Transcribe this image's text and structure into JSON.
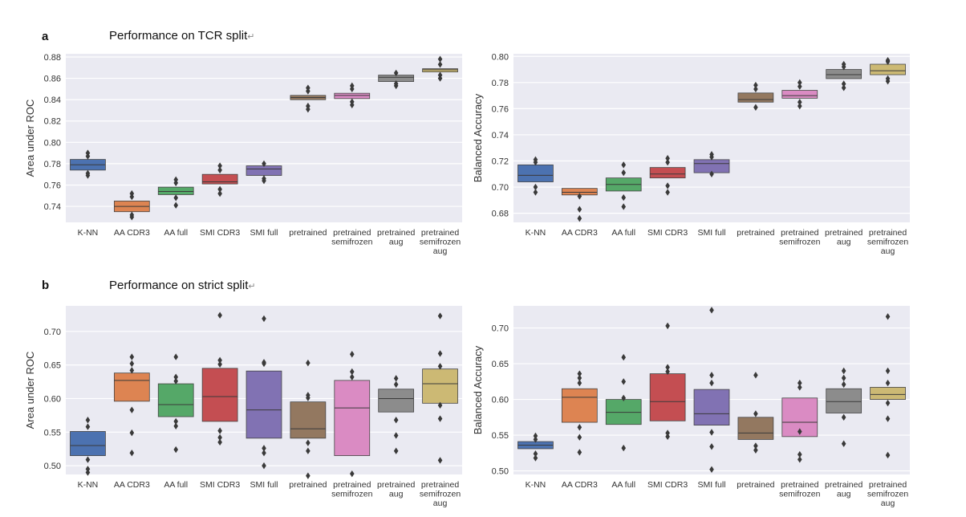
{
  "panels": [
    {
      "letter": "a",
      "title": "Performance on TCR split",
      "mark": "↵"
    },
    {
      "letter": "b",
      "title": "Performance on strict split",
      "mark": "↵"
    }
  ],
  "colors": {
    "background": "#eaeaf2",
    "grid": "#ffffff",
    "outlier": "#3a3a3a",
    "median": "#3a3a3a",
    "series": [
      "#4c72b0",
      "#dd8452",
      "#55a868",
      "#c44e52",
      "#8172b3",
      "#937860",
      "#da8bc3",
      "#8c8c8c",
      "#ccb974"
    ]
  },
  "chart_data": [
    {
      "type": "box",
      "ylabel": "Area under ROC",
      "ylim": [
        0.725,
        0.883
      ],
      "yticks": [
        "0.74",
        "0.76",
        "0.78",
        "0.80",
        "0.82",
        "0.84",
        "0.86",
        "0.88"
      ],
      "categories": [
        "K-NN",
        "AA CDR3",
        "AA full",
        "SMI CDR3",
        "SMI full",
        "pretrained",
        "pretrained\nsemifrozen",
        "pretrained\naug",
        "pretrained\nsemifrozen\naug"
      ],
      "boxes": [
        {
          "q1": 0.774,
          "median": 0.779,
          "q3": 0.784,
          "outliers": [
            0.769,
            0.771,
            0.787,
            0.79
          ]
        },
        {
          "q1": 0.735,
          "median": 0.74,
          "q3": 0.745,
          "outliers": [
            0.73,
            0.732,
            0.749,
            0.752
          ]
        },
        {
          "q1": 0.751,
          "median": 0.754,
          "q3": 0.758,
          "outliers": [
            0.741,
            0.748,
            0.762,
            0.765
          ]
        },
        {
          "q1": 0.761,
          "median": 0.763,
          "q3": 0.77,
          "outliers": [
            0.752,
            0.756,
            0.774,
            0.778
          ]
        },
        {
          "q1": 0.769,
          "median": 0.775,
          "q3": 0.778,
          "outliers": [
            0.764,
            0.766,
            0.78
          ]
        },
        {
          "q1": 0.84,
          "median": 0.842,
          "q3": 0.844,
          "outliers": [
            0.831,
            0.834,
            0.848,
            0.851
          ]
        },
        {
          "q1": 0.841,
          "median": 0.844,
          "q3": 0.846,
          "outliers": [
            0.835,
            0.838,
            0.85,
            0.853
          ]
        },
        {
          "q1": 0.857,
          "median": 0.861,
          "q3": 0.863,
          "outliers": [
            0.853,
            0.855,
            0.865
          ]
        },
        {
          "q1": 0.866,
          "median": 0.868,
          "q3": 0.869,
          "outliers": [
            0.86,
            0.863,
            0.873,
            0.878
          ]
        }
      ]
    },
    {
      "type": "box",
      "ylabel": "Balanced Accuracy",
      "ylim": [
        0.673,
        0.802
      ],
      "yticks": [
        "0.68",
        "0.70",
        "0.72",
        "0.74",
        "0.76",
        "0.78",
        "0.80"
      ],
      "categories": [
        "K-NN",
        "AA CDR3",
        "AA full",
        "SMI CDR3",
        "SMI full",
        "pretrained",
        "pretrained\nsemifrozen",
        "pretrained\naug",
        "pretrained\nsemifrozen\naug"
      ],
      "boxes": [
        {
          "q1": 0.704,
          "median": 0.709,
          "q3": 0.717,
          "outliers": [
            0.696,
            0.7,
            0.719,
            0.721
          ]
        },
        {
          "q1": 0.694,
          "median": 0.696,
          "q3": 0.699,
          "outliers": [
            0.676,
            0.683,
            0.693
          ]
        },
        {
          "q1": 0.697,
          "median": 0.702,
          "q3": 0.707,
          "outliers": [
            0.685,
            0.692,
            0.711,
            0.717
          ]
        },
        {
          "q1": 0.707,
          "median": 0.71,
          "q3": 0.715,
          "outliers": [
            0.696,
            0.701,
            0.719,
            0.722
          ]
        },
        {
          "q1": 0.711,
          "median": 0.718,
          "q3": 0.721,
          "outliers": [
            0.71,
            0.723,
            0.725
          ]
        },
        {
          "q1": 0.765,
          "median": 0.767,
          "q3": 0.772,
          "outliers": [
            0.761,
            0.775,
            0.778
          ]
        },
        {
          "q1": 0.768,
          "median": 0.77,
          "q3": 0.774,
          "outliers": [
            0.762,
            0.765,
            0.777,
            0.78
          ]
        },
        {
          "q1": 0.783,
          "median": 0.786,
          "q3": 0.79,
          "outliers": [
            0.776,
            0.779,
            0.792,
            0.794
          ]
        },
        {
          "q1": 0.786,
          "median": 0.789,
          "q3": 0.794,
          "outliers": [
            0.781,
            0.783,
            0.796,
            0.797
          ]
        }
      ]
    },
    {
      "type": "box",
      "ylabel": "Area under ROC",
      "ylim": [
        0.487,
        0.738
      ],
      "yticks": [
        "0.50",
        "0.55",
        "0.60",
        "0.65",
        "0.70"
      ],
      "categories": [
        "K-NN",
        "AA CDR3",
        "AA full",
        "SMI CDR3",
        "SMI full",
        "pretrained",
        "pretrained\nsemifrozen",
        "pretrained\naug",
        "pretrained\nsemifrozen\naug"
      ],
      "boxes": [
        {
          "q1": 0.515,
          "median": 0.53,
          "q3": 0.551,
          "outliers": [
            0.49,
            0.495,
            0.509,
            0.558,
            0.568
          ]
        },
        {
          "q1": 0.596,
          "median": 0.627,
          "q3": 0.638,
          "outliers": [
            0.519,
            0.549,
            0.583,
            0.642,
            0.652,
            0.662
          ]
        },
        {
          "q1": 0.573,
          "median": 0.591,
          "q3": 0.622,
          "outliers": [
            0.524,
            0.559,
            0.566,
            0.626,
            0.632,
            0.662
          ]
        },
        {
          "q1": 0.566,
          "median": 0.603,
          "q3": 0.645,
          "outliers": [
            0.535,
            0.542,
            0.552,
            0.651,
            0.657,
            0.724
          ]
        },
        {
          "q1": 0.541,
          "median": 0.583,
          "q3": 0.641,
          "outliers": [
            0.5,
            0.519,
            0.526,
            0.652,
            0.654,
            0.719
          ]
        },
        {
          "q1": 0.541,
          "median": 0.555,
          "q3": 0.595,
          "outliers": [
            0.485,
            0.522,
            0.534,
            0.601,
            0.605,
            0.653
          ]
        },
        {
          "q1": 0.515,
          "median": 0.586,
          "q3": 0.627,
          "outliers": [
            0.488,
            0.632,
            0.64,
            0.666
          ]
        },
        {
          "q1": 0.58,
          "median": 0.6,
          "q3": 0.614,
          "outliers": [
            0.522,
            0.545,
            0.568,
            0.621,
            0.63
          ]
        },
        {
          "q1": 0.593,
          "median": 0.622,
          "q3": 0.644,
          "outliers": [
            0.508,
            0.57,
            0.59,
            0.648,
            0.667,
            0.723
          ]
        }
      ]
    },
    {
      "type": "box",
      "ylabel": "Balanced Accuracy",
      "ylim": [
        0.495,
        0.731
      ],
      "yticks": [
        "0.50",
        "0.55",
        "0.60",
        "0.65",
        "0.70"
      ],
      "categories": [
        "K-NN",
        "AA CDR3",
        "AA full",
        "SMI CDR3",
        "SMI full",
        "pretrained",
        "pretrained\nsemifrozen",
        "pretrained\naug",
        "pretrained\nsemifrozen\naug"
      ],
      "boxes": [
        {
          "q1": 0.531,
          "median": 0.536,
          "q3": 0.541,
          "outliers": [
            0.518,
            0.524,
            0.544,
            0.549
          ]
        },
        {
          "q1": 0.568,
          "median": 0.603,
          "q3": 0.615,
          "outliers": [
            0.526,
            0.547,
            0.561,
            0.623,
            0.63,
            0.636
          ]
        },
        {
          "q1": 0.565,
          "median": 0.582,
          "q3": 0.6,
          "outliers": [
            0.532,
            0.602,
            0.625,
            0.659
          ]
        },
        {
          "q1": 0.57,
          "median": 0.597,
          "q3": 0.636,
          "outliers": [
            0.548,
            0.553,
            0.639,
            0.645,
            0.703
          ]
        },
        {
          "q1": 0.564,
          "median": 0.58,
          "q3": 0.614,
          "outliers": [
            0.502,
            0.534,
            0.554,
            0.623,
            0.634,
            0.725
          ]
        },
        {
          "q1": 0.544,
          "median": 0.553,
          "q3": 0.575,
          "outliers": [
            0.529,
            0.535,
            0.58,
            0.634
          ]
        },
        {
          "q1": 0.548,
          "median": 0.568,
          "q3": 0.602,
          "outliers": [
            0.516,
            0.523,
            0.555,
            0.617,
            0.623
          ]
        },
        {
          "q1": 0.581,
          "median": 0.597,
          "q3": 0.615,
          "outliers": [
            0.538,
            0.575,
            0.621,
            0.63,
            0.64
          ]
        },
        {
          "q1": 0.6,
          "median": 0.607,
          "q3": 0.617,
          "outliers": [
            0.522,
            0.573,
            0.595,
            0.623,
            0.64,
            0.716
          ]
        }
      ]
    }
  ]
}
